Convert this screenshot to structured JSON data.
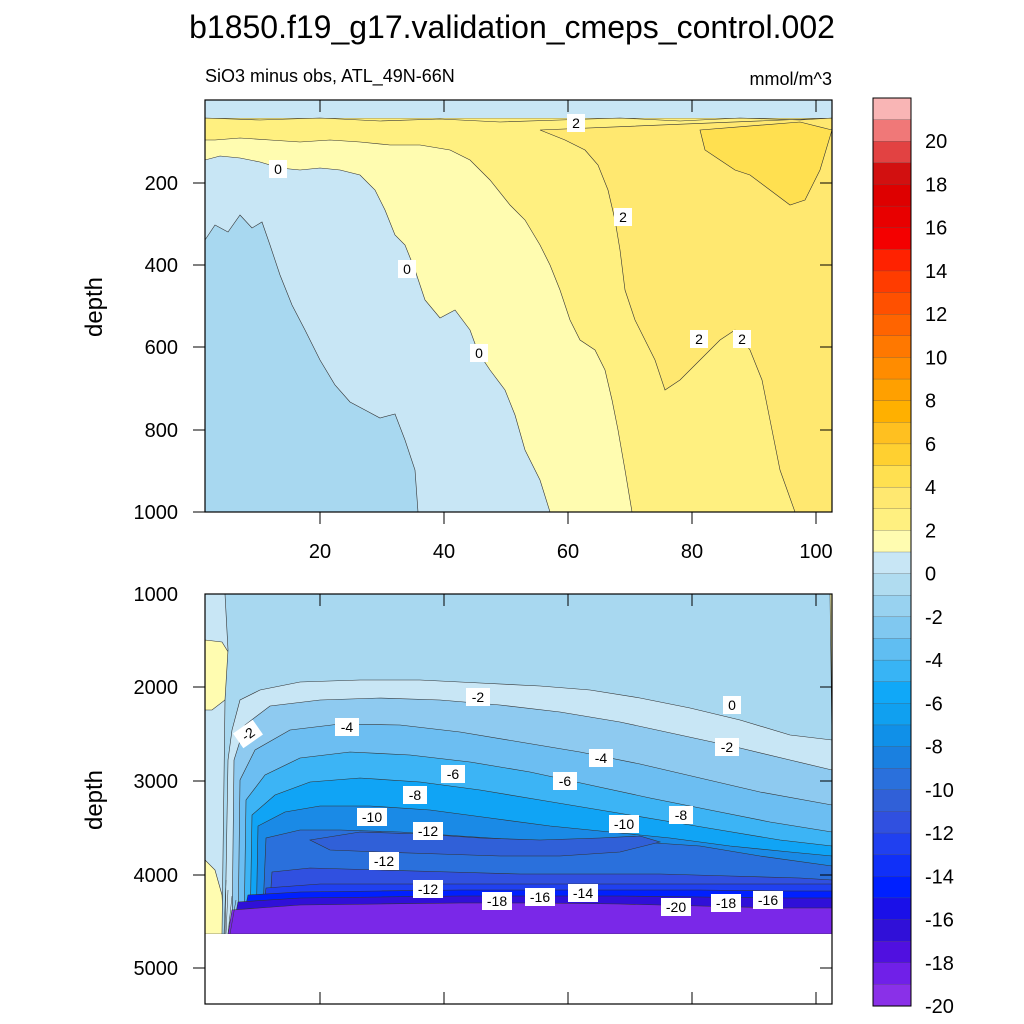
{
  "chart_data": {
    "type": "contour",
    "title": "b1850.f19_g17.validation_cmeps_control.002",
    "subtitle_left": "SiO3 minus obs, ATL_49N-66N",
    "subtitle_right": "mmol/m^3",
    "colorbar": {
      "tick_labels": [
        "20",
        "18",
        "16",
        "14",
        "12",
        "10",
        "8",
        "6",
        "4",
        "2",
        "0",
        "-2",
        "-4",
        "-6",
        "-8",
        "-10",
        "-12",
        "-14",
        "-16",
        "-18",
        "-20"
      ],
      "colors_top_to_bottom": [
        "#f9b5b5",
        "#f07878",
        "#e24242",
        "#d21010",
        "#de0000",
        "#e80000",
        "#f40000",
        "#ff2200",
        "#ff3c00",
        "#ff5000",
        "#ff6400",
        "#ff7800",
        "#ff8c00",
        "#ffa000",
        "#ffb000",
        "#ffc020",
        "#ffd030",
        "#ffe050",
        "#ffe870",
        "#fff080",
        "#fffcb0",
        "#c8e6f5",
        "#b0dcf0",
        "#98d2f0",
        "#80c8f0",
        "#60bef2",
        "#38b4f5",
        "#10a8f8",
        "#10a0f0",
        "#1090e8",
        "#1a80e0",
        "#2a70dc",
        "#3060d8",
        "#3050e0",
        "#2040f0",
        "#1030f8",
        "#0020ff",
        "#1a10e8",
        "#3010d8",
        "#5010e0",
        "#7020e8",
        "#8a30e8"
      ]
    },
    "upper_panel": {
      "ylabel": "depth",
      "xlim": [
        1,
        101
      ],
      "ylim": [
        1000,
        0
      ],
      "x_ticks": [
        "20",
        "40",
        "60",
        "80",
        "100"
      ],
      "y_ticks": [
        "200",
        "400",
        "600",
        "800",
        "1000"
      ],
      "regions": [
        {
          "range": "-2..0",
          "color": "#a8d8f0"
        },
        {
          "range": "0..-2 edge",
          "color": "#c8e6f5"
        },
        {
          "range": "0..1",
          "color": "#fffcb0"
        },
        {
          "range": "1..2",
          "color": "#fff080"
        },
        {
          "range": "2..3",
          "color": "#ffe870"
        },
        {
          "range": "3..4",
          "color": "#ffe050"
        }
      ],
      "contour_labels": [
        {
          "text": "2",
          "x": 58,
          "depth": 90
        },
        {
          "text": "0",
          "x": 12,
          "depth": 180
        },
        {
          "text": "2",
          "x": 68,
          "depth": 380
        },
        {
          "text": "0",
          "x": 34,
          "depth": 420
        },
        {
          "text": "0",
          "x": 45,
          "depth": 620
        },
        {
          "text": "2",
          "x": 82,
          "depth": 600
        },
        {
          "text": "2",
          "x": 89,
          "depth": 600
        }
      ]
    },
    "lower_panel": {
      "ylabel": "depth",
      "xlim": [
        1,
        101
      ],
      "ylim": [
        5400,
        1000
      ],
      "y_ticks": [
        "1000",
        "2000",
        "3000",
        "4000",
        "5000"
      ],
      "contour_labels": [
        {
          "text": "-2",
          "x": 8,
          "depth": 2500
        },
        {
          "text": "-2",
          "x": 46,
          "depth": 2100
        },
        {
          "text": "-4",
          "x": 24,
          "depth": 2420
        },
        {
          "text": "0",
          "x": 88,
          "depth": 2180
        },
        {
          "text": "-2",
          "x": 87,
          "depth": 2630
        },
        {
          "text": "-4",
          "x": 66,
          "depth": 2770
        },
        {
          "text": "-6",
          "x": 41,
          "depth": 2950
        },
        {
          "text": "-6",
          "x": 59,
          "depth": 3000
        },
        {
          "text": "-8",
          "x": 35,
          "depth": 3160
        },
        {
          "text": "-8",
          "x": 80,
          "depth": 3370
        },
        {
          "text": "-10",
          "x": 28,
          "depth": 3400
        },
        {
          "text": "-10",
          "x": 69,
          "depth": 3440
        },
        {
          "text": "-12",
          "x": 37,
          "depth": 3500
        },
        {
          "text": "-12",
          "x": 30,
          "depth": 3850
        },
        {
          "text": "-12",
          "x": 37,
          "depth": 4150
        },
        {
          "text": "-18",
          "x": 49,
          "depth": 4280
        },
        {
          "text": "-16",
          "x": 56,
          "depth": 4250
        },
        {
          "text": "-14",
          "x": 62,
          "depth": 4220
        },
        {
          "text": "-20",
          "x": 79,
          "depth": 4360
        },
        {
          "text": "-18",
          "x": 85,
          "depth": 4330
        },
        {
          "text": "-16",
          "x": 92,
          "depth": 4280
        }
      ]
    }
  }
}
